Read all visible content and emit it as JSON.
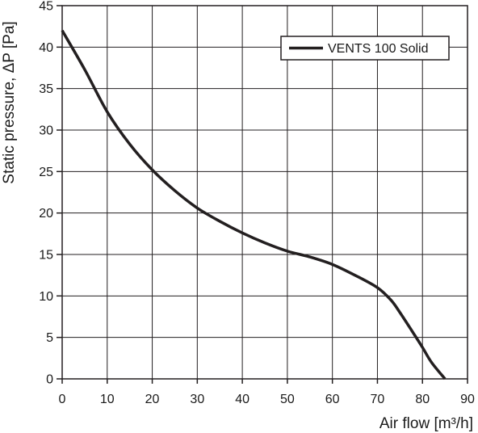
{
  "chart_data": {
    "type": "line",
    "title": "",
    "xlabel": "Air flow [m³/h]",
    "ylabel": "Static pressure, ΔP [Pa]",
    "xlim": [
      0,
      90
    ],
    "ylim": [
      0,
      45
    ],
    "xticks": [
      "0",
      "10",
      "20",
      "30",
      "40",
      "50",
      "60",
      "70",
      "80",
      "90"
    ],
    "yticks": [
      "0",
      "5",
      "10",
      "15",
      "20",
      "25",
      "30",
      "35",
      "40",
      "45"
    ],
    "grid": true,
    "legend": {
      "position": "top-right",
      "entries": [
        "VENTS 100 Solid"
      ]
    },
    "colors": {
      "line": "#231f20",
      "grid": "#231f20",
      "axis": "#231f20"
    },
    "series": [
      {
        "name": "VENTS 100 Solid",
        "x": [
          0,
          5,
          10,
          15,
          20,
          25,
          30,
          35,
          40,
          45,
          50,
          55,
          60,
          65,
          70,
          73,
          75,
          78,
          80,
          82,
          85
        ],
        "y": [
          42,
          37.3,
          32.2,
          28.3,
          25.2,
          22.7,
          20.6,
          19,
          17.6,
          16.4,
          15.4,
          14.7,
          13.8,
          12.5,
          11,
          9.5,
          8,
          5.5,
          3.8,
          2,
          0
        ]
      }
    ]
  }
}
